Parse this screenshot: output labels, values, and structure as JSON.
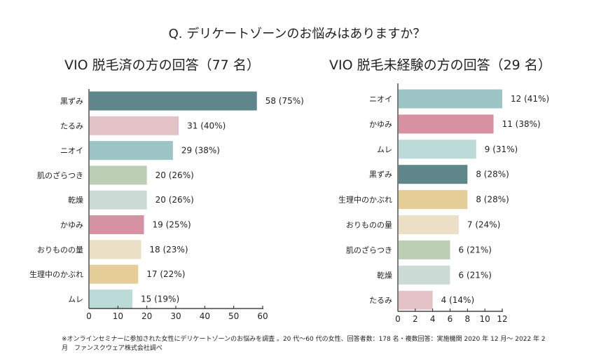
{
  "title": "Q. デリケートゾーンのお悩みはありますか？",
  "footnote": "※オンラインセミナーに参加された女性にデリケートゾーンのお悩みを調査 。20 代〜60 代の女性、回答者数：178 名・複数回答：実施機関 2020 年 12 月〜 2022 年 2 月　ファンスクウェア株式会社調べ",
  "chart_data": [
    {
      "type": "bar",
      "orientation": "horizontal",
      "title": "VIO 脱毛済の方の回答（77 名）",
      "categories": [
        "黒ずみ",
        "たるみ",
        "ニオイ",
        "肌のざらつき",
        "乾燥",
        "かゆみ",
        "おりものの量",
        "生理中のかぶれ",
        "ムレ"
      ],
      "values": [
        58,
        31,
        29,
        20,
        20,
        19,
        18,
        17,
        15
      ],
      "value_labels": [
        "58 (75%)",
        "31 (40%)",
        "29 (38%)",
        "20 (26%)",
        "20 (26%)",
        "19 (25%)",
        "18 (23%)",
        "17 (22%)",
        "15 (19%)"
      ],
      "colors": [
        "#5e868b",
        "#e4c3c8",
        "#9dc5c6",
        "#bccfb4",
        "#cddbd6",
        "#d691a3",
        "#ebdfc6",
        "#e5ce98",
        "#bcdad7"
      ],
      "xlim": [
        0,
        60
      ],
      "xticks": [
        "0",
        "10",
        "20",
        "30",
        "40",
        "50",
        "60"
      ]
    },
    {
      "type": "bar",
      "orientation": "horizontal",
      "title": "VIO 脱毛未経験の方の回答（29 名）",
      "categories": [
        "ニオイ",
        "かゆみ",
        "ムレ",
        "黒ずみ",
        "生理中のかぶれ",
        "おりものの量",
        "肌のざらつき",
        "乾燥",
        "たるみ"
      ],
      "values": [
        12,
        11,
        9,
        8,
        8,
        7,
        6,
        6,
        4
      ],
      "value_labels": [
        "12 (41%)",
        "11 (38%)",
        "9 (31%)",
        "8 (28%)",
        "8 (28%)",
        "7 (24%)",
        "6 (21%)",
        "6 (21%)",
        "4 (14%)"
      ],
      "colors": [
        "#9dc5c6",
        "#d691a3",
        "#bcdad7",
        "#5e868b",
        "#e5ce98",
        "#ebdfc6",
        "#bccfb4",
        "#cddbd6",
        "#e4c3c8"
      ],
      "xlim": [
        0,
        12
      ],
      "xticks": [
        "0",
        "2",
        "4",
        "6",
        "8",
        "10",
        "12"
      ]
    }
  ]
}
